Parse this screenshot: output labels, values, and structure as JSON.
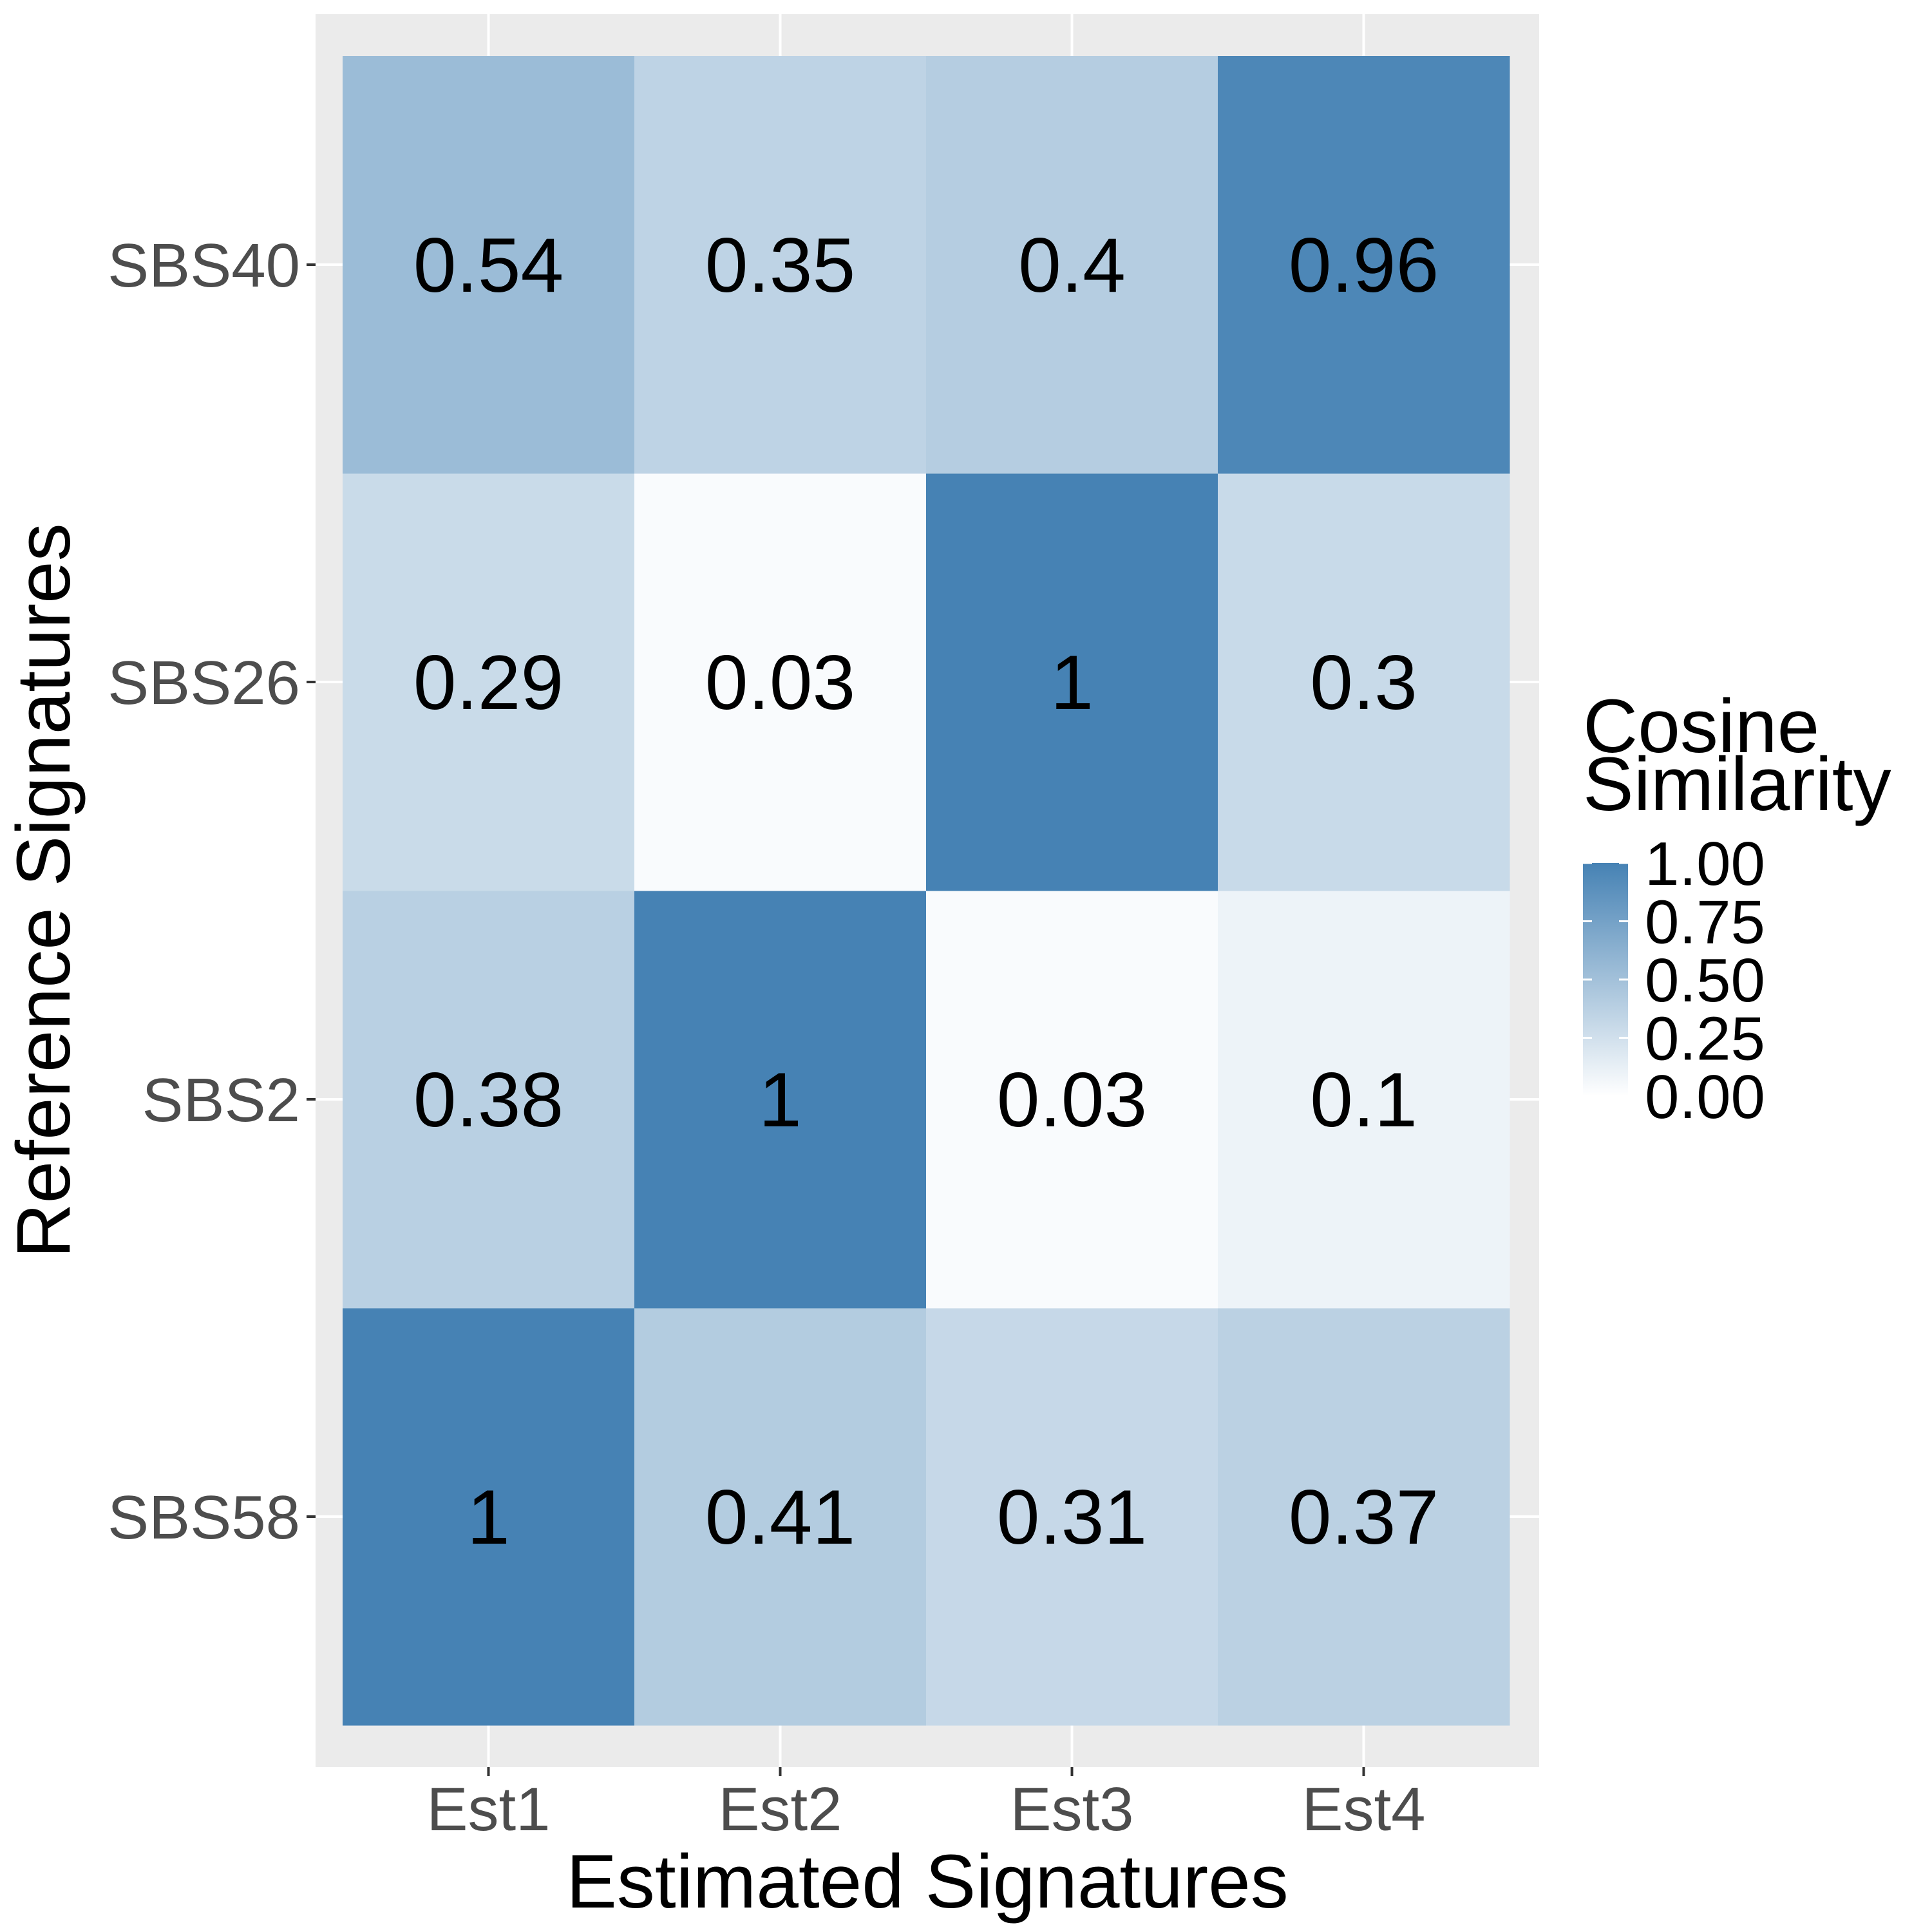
{
  "chart_data": {
    "type": "heatmap",
    "x_categories": [
      "Est1",
      "Est2",
      "Est3",
      "Est4"
    ],
    "y_categories": [
      "SBS58",
      "SBS2",
      "SBS26",
      "SBS40"
    ],
    "values": [
      [
        1,
        0.41,
        0.31,
        0.37
      ],
      [
        0.38,
        1,
        0.03,
        0.1
      ],
      [
        0.29,
        0.03,
        1,
        0.3
      ],
      [
        0.54,
        0.35,
        0.4,
        0.96
      ]
    ],
    "labels": [
      [
        "1",
        "0.41",
        "0.31",
        "0.37"
      ],
      [
        "0.38",
        "1",
        "0.03",
        "0.1"
      ],
      [
        "0.29",
        "0.03",
        "1",
        "0.3"
      ],
      [
        "0.54",
        "0.35",
        "0.4",
        "0.96"
      ]
    ],
    "xlabel": "Estimated Signatures",
    "ylabel": "Reference Signatures",
    "legend": {
      "title_lines": [
        "Cosine",
        "Similarity"
      ],
      "ticks": [
        "1.00",
        "0.75",
        "0.50",
        "0.25",
        "0.00"
      ],
      "tick_values": [
        1.0,
        0.75,
        0.5,
        0.25,
        0.0
      ],
      "range": [
        0,
        1
      ],
      "placement": "right"
    },
    "color_low": "#ffffff",
    "color_high": "#4682b4",
    "panel_background": "#ebebeb",
    "grid": true
  }
}
